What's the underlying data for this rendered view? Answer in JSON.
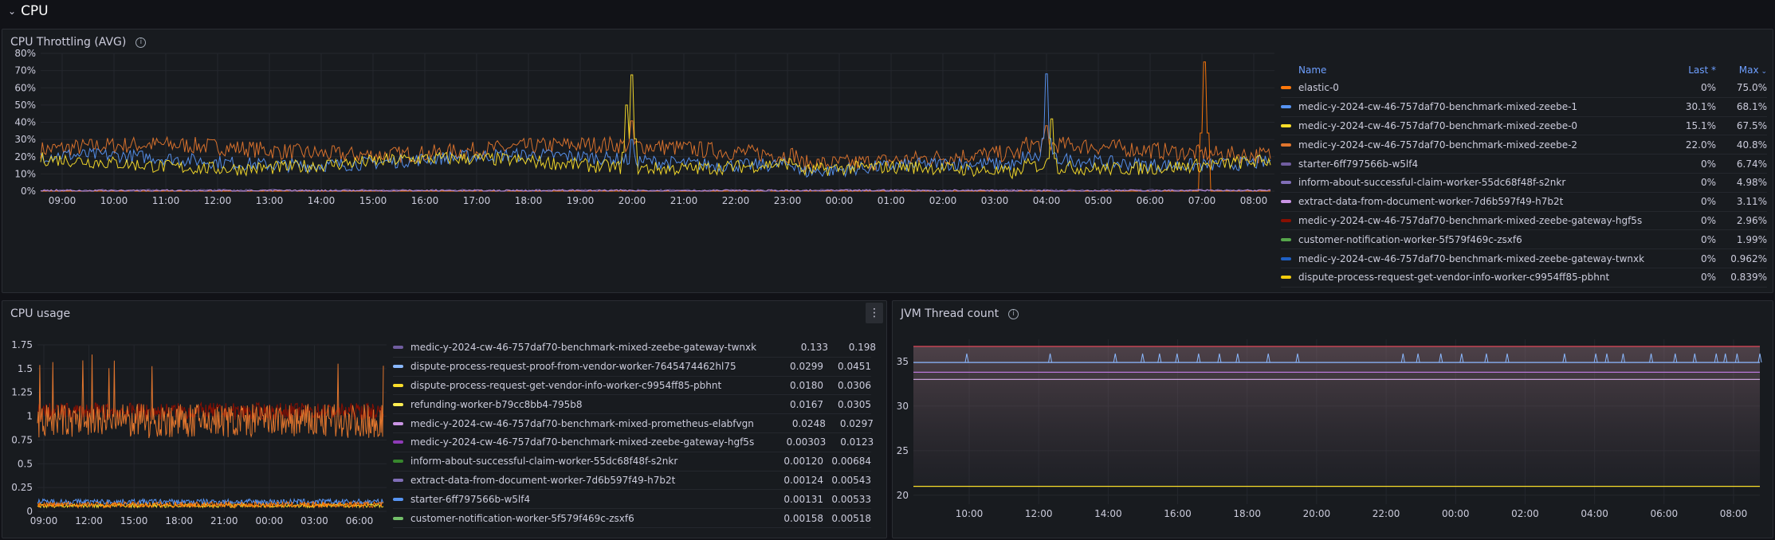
{
  "row": {
    "title": "CPU"
  },
  "panels": {
    "throttling": {
      "title": "CPU Throttling (AVG)",
      "legend": {
        "headers": {
          "name": "Name",
          "last": "Last *",
          "max": "Max"
        },
        "rows": [
          {
            "name": "elastic-0",
            "last": "0%",
            "max": "75.0%",
            "color": "#ff780a"
          },
          {
            "name": "medic-y-2024-cw-46-757daf70-benchmark-mixed-zeebe-1",
            "last": "30.1%",
            "max": "68.1%",
            "color": "#5794f2"
          },
          {
            "name": "medic-y-2024-cw-46-757daf70-benchmark-mixed-zeebe-0",
            "last": "15.1%",
            "max": "67.5%",
            "color": "#fade2a"
          },
          {
            "name": "medic-y-2024-cw-46-757daf70-benchmark-mixed-zeebe-2",
            "last": "22.0%",
            "max": "40.8%",
            "color": "#e0752d"
          },
          {
            "name": "starter-6ff797566b-w5lf4",
            "last": "0%",
            "max": "6.74%",
            "color": "#705da0"
          },
          {
            "name": "inform-about-successful-claim-worker-55dc68f48f-s2nkr",
            "last": "0%",
            "max": "4.98%",
            "color": "#806eb7"
          },
          {
            "name": "extract-data-from-document-worker-7d6b597f49-h7b2t",
            "last": "0%",
            "max": "3.11%",
            "color": "#ca95e5"
          },
          {
            "name": "medic-y-2024-cw-46-757daf70-benchmark-mixed-zeebe-gateway-hgf5s",
            "last": "0%",
            "max": "2.96%",
            "color": "#890f02"
          },
          {
            "name": "customer-notification-worker-5f579f469c-zsxf6",
            "last": "0%",
            "max": "1.99%",
            "color": "#56a64b"
          },
          {
            "name": "medic-y-2024-cw-46-757daf70-benchmark-mixed-zeebe-gateway-twnxk",
            "last": "0%",
            "max": "0.962%",
            "color": "#1f60c4"
          },
          {
            "name": "dispute-process-request-get-vendor-info-worker-c9954ff85-pbhnt",
            "last": "0%",
            "max": "0.839%",
            "color": "#f2cc0c"
          }
        ]
      }
    },
    "cpu_usage": {
      "title": "CPU usage",
      "menu_icon": "kebab-menu-icon",
      "legend": {
        "rows": [
          {
            "name": "medic-y-2024-cw-46-757daf70-benchmark-mixed-zeebe-gateway-twnxk",
            "last": "0.133",
            "max": "0.198",
            "color": "#705da0"
          },
          {
            "name": "dispute-process-request-proof-from-vendor-worker-7645474462hl75",
            "last": "0.0299",
            "max": "0.0451",
            "color": "#8ab8ff"
          },
          {
            "name": "dispute-process-request-get-vendor-info-worker-c9954ff85-pbhnt",
            "last": "0.0180",
            "max": "0.0306",
            "color": "#fade2a"
          },
          {
            "name": "refunding-worker-b79cc8bb4-795b8",
            "last": "0.0167",
            "max": "0.0305",
            "color": "#ffee52"
          },
          {
            "name": "medic-y-2024-cw-46-757daf70-benchmark-mixed-prometheus-elabfvgn",
            "last": "0.0248",
            "max": "0.0297",
            "color": "#ca95e5"
          },
          {
            "name": "medic-y-2024-cw-46-757daf70-benchmark-mixed-zeebe-gateway-hgf5s",
            "last": "0.00303",
            "max": "0.0123",
            "color": "#8f3bb8"
          },
          {
            "name": "inform-about-successful-claim-worker-55dc68f48f-s2nkr",
            "last": "0.00120",
            "max": "0.00684",
            "color": "#37872d"
          },
          {
            "name": "extract-data-from-document-worker-7d6b597f49-h7b2t",
            "last": "0.00124",
            "max": "0.00543",
            "color": "#806eb7"
          },
          {
            "name": "starter-6ff797566b-w5lf4",
            "last": "0.00131",
            "max": "0.00533",
            "color": "#5794f2"
          },
          {
            "name": "customer-notification-worker-5f579f469c-zsxf6",
            "last": "0.00158",
            "max": "0.00518",
            "color": "#73bf69"
          }
        ]
      }
    },
    "jvm": {
      "title": "JVM Thread count"
    }
  },
  "chart_data": [
    {
      "type": "line",
      "title": "CPU Throttling (AVG)",
      "x_ticks": [
        "09:00",
        "10:00",
        "11:00",
        "12:00",
        "13:00",
        "14:00",
        "15:00",
        "16:00",
        "17:00",
        "18:00",
        "19:00",
        "20:00",
        "21:00",
        "22:00",
        "23:00",
        "00:00",
        "01:00",
        "02:00",
        "03:00",
        "04:00",
        "05:00",
        "06:00",
        "07:00",
        "08:00"
      ],
      "y_ticks": [
        "0%",
        "10%",
        "20%",
        "30%",
        "40%",
        "50%",
        "60%",
        "70%",
        "80%"
      ],
      "ylim": [
        0,
        80
      ],
      "grid": true,
      "legend": "right",
      "series": [
        {
          "name": "medic-y-2024-cw-46-757daf70-benchmark-mixed-zeebe-2",
          "color": "#e0752d",
          "base": 24,
          "noise": 5,
          "spikes": [
            [
              20.0,
              40.8
            ],
            [
              4.0,
              38
            ]
          ]
        },
        {
          "name": "medic-y-2024-cw-46-757daf70-benchmark-mixed-zeebe-1",
          "color": "#5794f2",
          "base": 18,
          "noise": 4,
          "spikes": [
            [
              4.0,
              68.1
            ],
            [
              20.0,
              30
            ]
          ]
        },
        {
          "name": "medic-y-2024-cw-46-757daf70-benchmark-mixed-zeebe-0",
          "color": "#fade2a",
          "base": 16,
          "noise": 4,
          "spikes": [
            [
              20.0,
              67.5
            ],
            [
              19.9,
              50
            ],
            [
              4.1,
              42
            ]
          ]
        },
        {
          "name": "elastic-0",
          "color": "#ff780a",
          "base": 0,
          "noise": 0,
          "spikes": [
            [
              7.05,
              75.0
            ]
          ]
        },
        {
          "name": "starter-6ff797566b-w5lf4",
          "color": "#705da0",
          "base": 0.5,
          "noise": 0.6,
          "spikes": []
        },
        {
          "name": "extract-data-from-document-worker-7d6b597f49-h7b2t",
          "color": "#ca95e5",
          "base": 0.3,
          "noise": 0.5,
          "spikes": []
        }
      ]
    },
    {
      "type": "line",
      "title": "CPU usage",
      "x_ticks": [
        "09:00",
        "12:00",
        "15:00",
        "18:00",
        "21:00",
        "00:00",
        "03:00",
        "06:00"
      ],
      "y_ticks": [
        "0",
        "0.25",
        "0.5",
        "0.75",
        "1",
        "1.25",
        "1.5",
        "1.75"
      ],
      "ylim": [
        0,
        1.75
      ],
      "grid": true,
      "legend": "right",
      "series": [
        {
          "color": "#890f02",
          "base": 1.05,
          "noise": 0.09
        },
        {
          "color": "#e0752d",
          "base": 0.95,
          "noise": 0.18
        },
        {
          "color": "#5794f2",
          "base": 0.1,
          "noise": 0.03
        },
        {
          "color": "#fade2a",
          "base": 0.06,
          "noise": 0.02
        },
        {
          "color": "#ff780a",
          "base": 0.07,
          "noise": 0.03
        }
      ]
    },
    {
      "type": "line",
      "title": "JVM Thread count",
      "x_ticks": [
        "10:00",
        "12:00",
        "14:00",
        "16:00",
        "18:00",
        "20:00",
        "22:00",
        "00:00",
        "02:00",
        "04:00",
        "06:00",
        "08:00"
      ],
      "y_ticks": [
        "20",
        "25",
        "30",
        "35"
      ],
      "ylim": [
        19,
        37.5
      ],
      "grid": true,
      "series": [
        {
          "color": "#f2495c",
          "constant": 36.7
        },
        {
          "color": "#8ab8ff",
          "constant": 34.9
        },
        {
          "color": "#b877d9",
          "constant": 33.8
        },
        {
          "color": "#c4a0d6",
          "constant": 33.0
        },
        {
          "color": "#fade2a",
          "constant": 21.0
        }
      ]
    }
  ]
}
